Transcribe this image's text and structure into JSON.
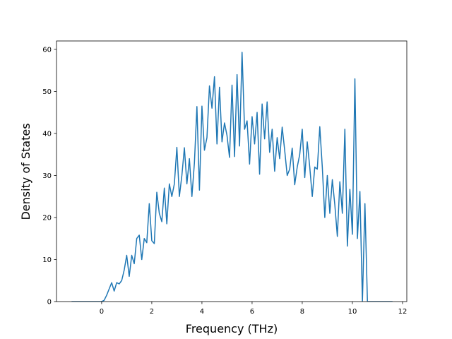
{
  "chart_data": {
    "type": "line",
    "xlabel": "Frequency (THz)",
    "ylabel": "Density of States",
    "x": [
      -1.2,
      -1.1,
      -1.0,
      -0.9,
      -0.8,
      -0.7,
      -0.6,
      -0.5,
      -0.4,
      -0.3,
      -0.2,
      -0.1,
      0.0,
      0.1,
      0.2,
      0.3,
      0.4,
      0.5,
      0.6,
      0.7,
      0.8,
      0.9,
      1.0,
      1.1,
      1.2,
      1.3,
      1.4,
      1.5,
      1.6,
      1.7,
      1.8,
      1.9,
      2.0,
      2.1,
      2.2,
      2.3,
      2.4,
      2.5,
      2.6,
      2.7,
      2.8,
      2.9,
      3.0,
      3.1,
      3.2,
      3.3,
      3.4,
      3.5,
      3.6,
      3.7,
      3.8,
      3.9,
      4.0,
      4.1,
      4.2,
      4.3,
      4.4,
      4.5,
      4.6,
      4.7,
      4.8,
      4.9,
      5.0,
      5.1,
      5.2,
      5.3,
      5.4,
      5.5,
      5.6,
      5.7,
      5.8,
      5.9,
      6.0,
      6.1,
      6.2,
      6.3,
      6.4,
      6.5,
      6.6,
      6.7,
      6.8,
      6.9,
      7.0,
      7.1,
      7.2,
      7.3,
      7.4,
      7.5,
      7.6,
      7.7,
      7.8,
      7.9,
      8.0,
      8.1,
      8.2,
      8.3,
      8.4,
      8.5,
      8.6,
      8.7,
      8.8,
      8.9,
      9.0,
      9.1,
      9.2,
      9.3,
      9.4,
      9.5,
      9.6,
      9.7,
      9.8,
      9.9,
      10.0,
      10.1,
      10.2,
      10.3,
      10.4,
      10.5,
      10.6,
      10.7,
      10.8,
      10.9,
      11.0,
      11.1,
      11.2,
      11.3,
      11.4,
      11.5,
      11.6
    ],
    "series": [
      {
        "color": "#1f77b4",
        "values": [
          0,
          0,
          0,
          0,
          0,
          0,
          0,
          0,
          0,
          0,
          0,
          0,
          0,
          0.3,
          1.5,
          3,
          4.5,
          2.5,
          4.5,
          4.2,
          5,
          7.5,
          11,
          6,
          11,
          9,
          15,
          15.8,
          10,
          15,
          14,
          23.3,
          14.5,
          13.8,
          26,
          21,
          19,
          27,
          18.5,
          28,
          25,
          28,
          36.7,
          25,
          30,
          36.6,
          28,
          34,
          25,
          33,
          46.4,
          26.5,
          46.5,
          36,
          39,
          51.3,
          46,
          53.5,
          37.5,
          51,
          38,
          42.5,
          39.5,
          34.3,
          51.5,
          34.5,
          54,
          37,
          59.3,
          41,
          43,
          32.7,
          44,
          37.5,
          45,
          30.3,
          47,
          38.7,
          47.5,
          35.5,
          41,
          31,
          39,
          34,
          41.5,
          36,
          30,
          31.5,
          36.5,
          27.8,
          32,
          35,
          41,
          29.5,
          38,
          32,
          25,
          32,
          31.5,
          41.6,
          32,
          20,
          30,
          21,
          29,
          23,
          15.5,
          28.5,
          21,
          41,
          13.2,
          26.7,
          16,
          53,
          15,
          26.2,
          0,
          23.3,
          0,
          0,
          0,
          0,
          0,
          0,
          0,
          0,
          0,
          0,
          0
        ]
      }
    ],
    "xlim": [
      -1.8,
      12.17
    ],
    "ylim": [
      0,
      62
    ],
    "xticks": [
      0,
      2,
      4,
      6,
      8,
      10,
      12
    ],
    "yticks": [
      0,
      10,
      20,
      30,
      40,
      50,
      60
    ]
  }
}
